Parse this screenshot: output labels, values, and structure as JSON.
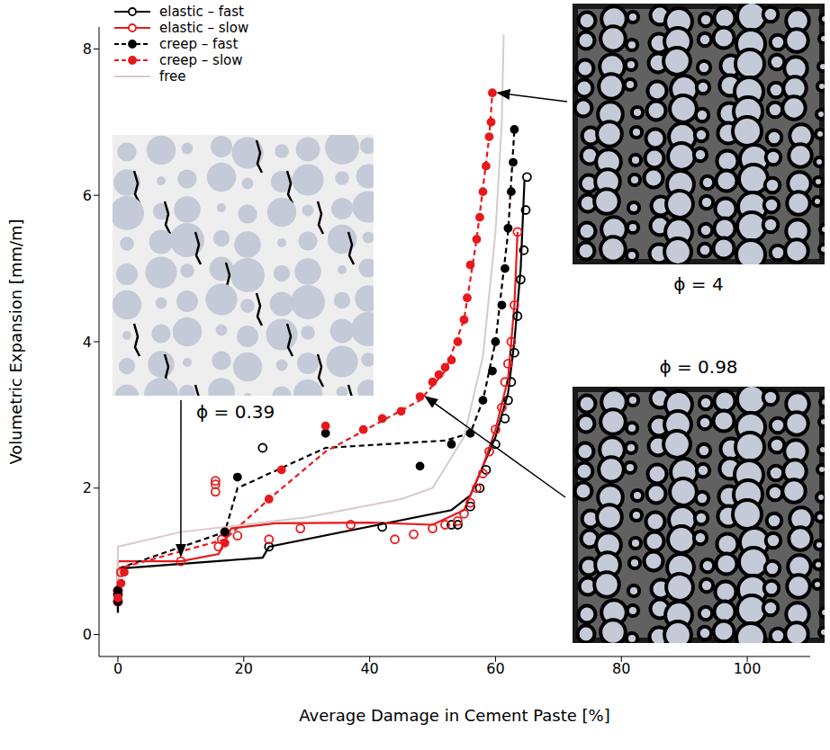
{
  "chart_data": {
    "type": "scatter",
    "x_label": "Average Damage in Cement Paste [%]",
    "y_label": "Volumetric Expansion [mm/m]",
    "xlim": [
      -3,
      110
    ],
    "xticks": [
      0,
      20,
      40,
      60,
      80,
      100
    ],
    "ylim": [
      -0.3,
      8.3
    ],
    "yticks": [
      0,
      2,
      4,
      6,
      8
    ],
    "grid": false,
    "legend": "top-left",
    "series": [
      {
        "name": "elastic – fast",
        "color": "#000000",
        "marker": "open_circle",
        "line_style": "solid",
        "points": {
          "x": [
            0,
            0,
            0,
            23,
            24,
            42,
            53,
            54,
            56,
            57.5,
            58.5,
            60,
            61.5,
            62,
            62.5,
            63,
            63.5,
            64,
            64.5,
            64.8,
            65
          ],
          "y": [
            0.45,
            0.55,
            0.6,
            2.55,
            1.2,
            1.47,
            1.5,
            1.5,
            1.75,
            2.0,
            2.25,
            2.6,
            2.95,
            3.2,
            3.45,
            3.85,
            4.35,
            4.85,
            5.25,
            5.8,
            6.25
          ]
        },
        "curve": {
          "x": [
            0,
            0,
            23,
            24,
            53,
            56,
            58,
            60,
            62,
            63,
            64,
            64.6
          ],
          "y": [
            0.3,
            0.9,
            1.05,
            1.2,
            1.7,
            1.9,
            2.3,
            2.7,
            3.3,
            4.0,
            5.0,
            6.2
          ]
        }
      },
      {
        "name": "elastic – slow",
        "color": "#e8191c",
        "marker": "open_circle",
        "line_style": "solid",
        "points": {
          "x": [
            0,
            0,
            0.5,
            10,
            15.5,
            15.5,
            15.5,
            16,
            16.5,
            17,
            19,
            24,
            29,
            37,
            44,
            47,
            50,
            52,
            54,
            55,
            56,
            57,
            58,
            59,
            60,
            61,
            61.5,
            62,
            62.5,
            63,
            63.5
          ],
          "y": [
            0.45,
            0.6,
            0.85,
            1.0,
            1.95,
            2.05,
            2.1,
            1.2,
            1.3,
            1.4,
            1.35,
            1.3,
            1.45,
            1.5,
            1.3,
            1.37,
            1.45,
            1.5,
            1.55,
            1.65,
            1.8,
            2.0,
            2.2,
            2.5,
            2.8,
            3.1,
            3.45,
            3.7,
            4.0,
            4.5,
            5.5
          ]
        },
        "curve": {
          "x": [
            0,
            0,
            10,
            16,
            18,
            25,
            40,
            50,
            55,
            58,
            60,
            62,
            63,
            63.5
          ],
          "y": [
            0.6,
            1.0,
            1.0,
            1.1,
            1.45,
            1.52,
            1.53,
            1.5,
            1.7,
            2.3,
            2.8,
            3.5,
            4.5,
            5.5
          ]
        }
      },
      {
        "name": "creep – fast",
        "color": "#000000",
        "marker": "filled_circle",
        "line_style": "dashed",
        "points": {
          "x": [
            0,
            0,
            17,
            19,
            33,
            48,
            53,
            56,
            58,
            59.5,
            60,
            61,
            61.5,
            62,
            62.5,
            62.8,
            63
          ],
          "y": [
            0.45,
            0.6,
            1.4,
            2.15,
            2.75,
            2.3,
            2.6,
            2.75,
            3.2,
            3.6,
            4.0,
            4.5,
            5.0,
            5.55,
            6.05,
            6.45,
            6.9
          ]
        },
        "curve": {
          "x": [
            0,
            0,
            17,
            19,
            33,
            52,
            56,
            58,
            60,
            62,
            63
          ],
          "y": [
            0.3,
            0.9,
            1.4,
            2.0,
            2.55,
            2.65,
            2.75,
            3.2,
            4.0,
            5.5,
            6.9
          ]
        }
      },
      {
        "name": "creep – slow",
        "color": "#e8191c",
        "marker": "filled_circle",
        "line_style": "dashed",
        "points": {
          "x": [
            0,
            0.5,
            1,
            17,
            24,
            26,
            33,
            39,
            42,
            45,
            48,
            50,
            51,
            52,
            53,
            54,
            55,
            55.5,
            56,
            57,
            57.5,
            58,
            58.5,
            59,
            59.3,
            59.5
          ],
          "y": [
            0.5,
            0.7,
            0.85,
            1.25,
            1.85,
            2.25,
            2.85,
            2.8,
            2.95,
            3.05,
            3.25,
            3.45,
            3.55,
            3.65,
            3.75,
            4.0,
            4.3,
            4.6,
            5.05,
            5.4,
            5.7,
            6.05,
            6.4,
            6.8,
            7.0,
            7.4
          ]
        },
        "curve": {
          "x": [
            0,
            0,
            17,
            24,
            33,
            48,
            52,
            55,
            57,
            59,
            59.5
          ],
          "y": [
            0.5,
            0.9,
            1.3,
            1.85,
            2.5,
            3.2,
            3.6,
            4.3,
            5.4,
            6.8,
            7.4
          ]
        }
      },
      {
        "name": "free",
        "color": "#d9caca",
        "marker": "none",
        "line_style": "solid",
        "curve": {
          "x": [
            0,
            0,
            10,
            30,
            45,
            50,
            55,
            58,
            60,
            61,
            61.3
          ],
          "y": [
            0.5,
            1.2,
            1.4,
            1.6,
            1.85,
            2.0,
            2.7,
            3.8,
            5.5,
            7.0,
            8.2
          ]
        }
      }
    ],
    "annotations": [
      {
        "text": "ϕ = 0.39",
        "x": 10,
        "y": 1.0
      },
      {
        "text": "ϕ = 4",
        "x": 59.5,
        "y": 7.4
      },
      {
        "text": "ϕ = 0.98",
        "x": 48,
        "y": 3.25
      }
    ]
  }
}
